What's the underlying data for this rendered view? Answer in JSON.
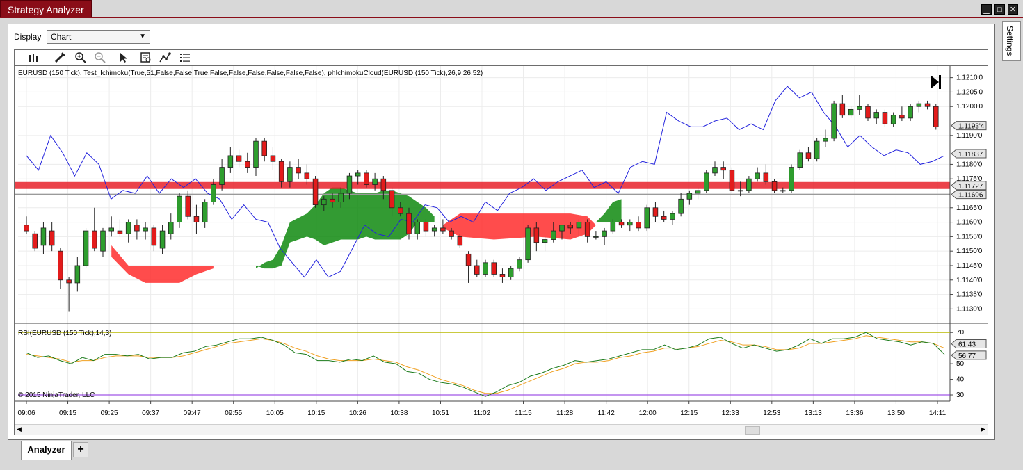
{
  "window": {
    "title": "Strategy Analyzer"
  },
  "display": {
    "label": "Display",
    "value": "Chart"
  },
  "settings_tab": "Settings",
  "tabs": [
    {
      "label": "Analyzer"
    },
    {
      "label": "+"
    }
  ],
  "toolbar": {
    "icons": [
      "bar-type-icon",
      "draw-pencil-icon",
      "zoom-in-icon",
      "zoom-out-icon",
      "pointer-icon",
      "data-box-icon",
      "strategy-icon",
      "list-icon"
    ]
  },
  "colors": {
    "up": "#2e9e2e",
    "down": "#e31b1b",
    "cloud_green": "#0f8a0f",
    "cloud_red": "#ff2d2d",
    "tenkan": "#2222dd",
    "rsi": "#1a7a1a",
    "rsi_avg": "#f0a020"
  },
  "chart_data": {
    "type": "candlestick",
    "title": "EURUSD (150 Tick), Test_Ichimoku(True,51,False,False,True,False,False,False,False,False,False), phIchimokuCloud(EURUSD (150 Tick),26,9,26,52)",
    "ylim": [
      1.1126,
      1.1214
    ],
    "y_ticks": [
      "1.1210'0",
      "1.1205'0",
      "1.1200'0",
      "1.1190'0",
      "1.1180'0",
      "1.1175'0",
      "1.1165'0",
      "1.1160'0",
      "1.1155'0",
      "1.1150'0",
      "1.1145'0",
      "1.1140'0",
      "1.1135'0",
      "1.1130'0"
    ],
    "price_markers": [
      {
        "label": "1.1193'4",
        "value": 1.11934
      },
      {
        "label": "1.11837",
        "value": 1.11837
      },
      {
        "label": "1.11727",
        "value": 1.11727
      },
      {
        "label": "1.11696",
        "value": 1.11696
      }
    ],
    "x_labels": [
      "09:06",
      "09:15",
      "09:25",
      "09:37",
      "09:47",
      "09:55",
      "10:05",
      "10:15",
      "10:26",
      "10:38",
      "10:51",
      "11:02",
      "11:15",
      "11:28",
      "11:42",
      "12:00",
      "12:15",
      "12:33",
      "12:53",
      "13:13",
      "13:36",
      "13:50",
      "14:11"
    ],
    "candles": [
      [
        1.1159,
        1.1162,
        1.1156,
        1.1157
      ],
      [
        1.1156,
        1.1157,
        1.115,
        1.1151
      ],
      [
        1.1152,
        1.116,
        1.1149,
        1.1158
      ],
      [
        1.1157,
        1.116,
        1.115,
        1.1152
      ],
      [
        1.115,
        1.1151,
        1.1137,
        1.114
      ],
      [
        1.114,
        1.1141,
        1.1129,
        1.1139
      ],
      [
        1.1139,
        1.1148,
        1.1136,
        1.1145
      ],
      [
        1.1145,
        1.1158,
        1.1144,
        1.1157
      ],
      [
        1.1157,
        1.1165,
        1.115,
        1.1151
      ],
      [
        1.115,
        1.1158,
        1.1148,
        1.1157
      ],
      [
        1.1157,
        1.1162,
        1.1155,
        1.1158
      ],
      [
        1.1157,
        1.1161,
        1.1155,
        1.1156
      ],
      [
        1.1156,
        1.1161,
        1.1153,
        1.116
      ],
      [
        1.1159,
        1.1161,
        1.1154,
        1.1157
      ],
      [
        1.1157,
        1.116,
        1.1154,
        1.1158
      ],
      [
        1.1158,
        1.1159,
        1.115,
        1.1152
      ],
      [
        1.1151,
        1.1159,
        1.1149,
        1.1157
      ],
      [
        1.1156,
        1.1163,
        1.1154,
        1.116
      ],
      [
        1.116,
        1.117,
        1.1158,
        1.1169
      ],
      [
        1.1169,
        1.1171,
        1.1161,
        1.1162
      ],
      [
        1.1162,
        1.1166,
        1.1156,
        1.116
      ],
      [
        1.116,
        1.1168,
        1.1158,
        1.1167
      ],
      [
        1.1167,
        1.1175,
        1.1166,
        1.1173
      ],
      [
        1.1173,
        1.1182,
        1.1171,
        1.1179
      ],
      [
        1.1179,
        1.1186,
        1.1177,
        1.1183
      ],
      [
        1.1183,
        1.1185,
        1.1179,
        1.1181
      ],
      [
        1.1181,
        1.1184,
        1.1177,
        1.1179
      ],
      [
        1.1179,
        1.1189,
        1.1176,
        1.1188
      ],
      [
        1.1188,
        1.1189,
        1.1181,
        1.1183
      ],
      [
        1.1183,
        1.1186,
        1.1178,
        1.1181
      ],
      [
        1.1181,
        1.1182,
        1.1172,
        1.1174
      ],
      [
        1.1174,
        1.1181,
        1.1172,
        1.1179
      ],
      [
        1.1179,
        1.1182,
        1.1175,
        1.1177
      ],
      [
        1.1177,
        1.118,
        1.1173,
        1.1175
      ],
      [
        1.1175,
        1.1176,
        1.1165,
        1.1166
      ],
      [
        1.1166,
        1.1169,
        1.1164,
        1.1168
      ],
      [
        1.1168,
        1.117,
        1.1165,
        1.1167
      ],
      [
        1.1167,
        1.1172,
        1.1165,
        1.117
      ],
      [
        1.117,
        1.1177,
        1.1168,
        1.1176
      ],
      [
        1.1176,
        1.1178,
        1.1173,
        1.1177
      ],
      [
        1.1177,
        1.1178,
        1.1172,
        1.1173
      ],
      [
        1.1173,
        1.1177,
        1.1171,
        1.1175
      ],
      [
        1.1175,
        1.1176,
        1.1168,
        1.1171
      ],
      [
        1.1171,
        1.1172,
        1.1162,
        1.1165
      ],
      [
        1.1165,
        1.1167,
        1.1162,
        1.1163
      ],
      [
        1.1163,
        1.1165,
        1.1154,
        1.1156
      ],
      [
        1.1156,
        1.1161,
        1.1154,
        1.116
      ],
      [
        1.116,
        1.1161,
        1.1155,
        1.1157
      ],
      [
        1.1157,
        1.1159,
        1.1155,
        1.1158
      ],
      [
        1.1158,
        1.1161,
        1.1156,
        1.1157
      ],
      [
        1.1157,
        1.1158,
        1.1154,
        1.1155
      ],
      [
        1.1155,
        1.1156,
        1.1151,
        1.1152
      ],
      [
        1.1149,
        1.115,
        1.1139,
        1.1145
      ],
      [
        1.1145,
        1.1147,
        1.1141,
        1.1142
      ],
      [
        1.1142,
        1.1147,
        1.1141,
        1.1146
      ],
      [
        1.1146,
        1.1147,
        1.1141,
        1.1142
      ],
      [
        1.1142,
        1.1144,
        1.1139,
        1.1141
      ],
      [
        1.1141,
        1.1145,
        1.114,
        1.1144
      ],
      [
        1.1144,
        1.1148,
        1.1143,
        1.1147
      ],
      [
        1.1147,
        1.1159,
        1.1146,
        1.1158
      ],
      [
        1.1158,
        1.116,
        1.115,
        1.1153
      ],
      [
        1.1153,
        1.1155,
        1.115,
        1.1154
      ],
      [
        1.1154,
        1.116,
        1.1153,
        1.1157
      ],
      [
        1.1157,
        1.1159,
        1.1154,
        1.1159
      ],
      [
        1.1159,
        1.116,
        1.1156,
        1.1158
      ],
      [
        1.1158,
        1.1161,
        1.1155,
        1.116
      ],
      [
        1.116,
        1.1161,
        1.1153,
        1.1155
      ],
      [
        1.1155,
        1.1157,
        1.1154,
        1.1155
      ],
      [
        1.1155,
        1.1158,
        1.1152,
        1.1157
      ],
      [
        1.1157,
        1.1161,
        1.1156,
        1.116
      ],
      [
        1.116,
        1.1161,
        1.1158,
        1.1159
      ],
      [
        1.1159,
        1.1161,
        1.1157,
        1.116
      ],
      [
        1.116,
        1.1162,
        1.1157,
        1.1158
      ],
      [
        1.1158,
        1.1166,
        1.1157,
        1.1165
      ],
      [
        1.1165,
        1.1167,
        1.116,
        1.1162
      ],
      [
        1.1162,
        1.1164,
        1.116,
        1.1161
      ],
      [
        1.1161,
        1.1164,
        1.1159,
        1.1163
      ],
      [
        1.1163,
        1.117,
        1.1162,
        1.1168
      ],
      [
        1.1168,
        1.1171,
        1.1166,
        1.117
      ],
      [
        1.117,
        1.1172,
        1.1168,
        1.1171
      ],
      [
        1.1171,
        1.1178,
        1.117,
        1.1177
      ],
      [
        1.1177,
        1.1181,
        1.1176,
        1.1179
      ],
      [
        1.1179,
        1.1181,
        1.1175,
        1.1178
      ],
      [
        1.1178,
        1.1179,
        1.117,
        1.1171
      ],
      [
        1.1171,
        1.1174,
        1.1169,
        1.1171
      ],
      [
        1.1171,
        1.1176,
        1.117,
        1.1175
      ],
      [
        1.1175,
        1.1179,
        1.1174,
        1.1177
      ],
      [
        1.1177,
        1.118,
        1.1173,
        1.1174
      ],
      [
        1.1174,
        1.1175,
        1.117,
        1.1171
      ],
      [
        1.1171,
        1.1172,
        1.117,
        1.1171
      ],
      [
        1.1171,
        1.118,
        1.117,
        1.1179
      ],
      [
        1.1179,
        1.1185,
        1.1178,
        1.1184
      ],
      [
        1.1184,
        1.1186,
        1.1181,
        1.1182
      ],
      [
        1.1182,
        1.1189,
        1.1181,
        1.1188
      ],
      [
        1.1188,
        1.1192,
        1.1186,
        1.1189
      ],
      [
        1.1189,
        1.1202,
        1.1188,
        1.1201
      ],
      [
        1.1201,
        1.1204,
        1.1196,
        1.1197
      ],
      [
        1.1197,
        1.12,
        1.1196,
        1.1199
      ],
      [
        1.1199,
        1.1204,
        1.1197,
        1.12
      ],
      [
        1.12,
        1.1201,
        1.1195,
        1.1196
      ],
      [
        1.1196,
        1.1199,
        1.1194,
        1.1198
      ],
      [
        1.1198,
        1.1199,
        1.1193,
        1.1194
      ],
      [
        1.1194,
        1.1198,
        1.1193,
        1.1197
      ],
      [
        1.1197,
        1.12,
        1.1195,
        1.1196
      ],
      [
        1.1196,
        1.1201,
        1.1195,
        1.12
      ],
      [
        1.12,
        1.1202,
        1.1198,
        1.1201
      ],
      [
        1.1201,
        1.1202,
        1.1199,
        1.12
      ],
      [
        1.12,
        1.1201,
        1.1192,
        1.1193
      ]
    ],
    "tenkan": [
      1.1183,
      1.1178,
      1.119,
      1.1184,
      1.1176,
      1.1184,
      1.118,
      1.1168,
      1.1171,
      1.117,
      1.1176,
      1.117,
      1.1175,
      1.1172,
      1.1175,
      1.117,
      1.1168,
      1.1161,
      1.1166,
      1.1161,
      1.116,
      1.1151,
      1.1146,
      1.1141,
      1.1147,
      1.1141,
      1.1143,
      1.1151,
      1.1159,
      1.1156,
      1.1155,
      1.1161,
      1.116,
      1.1166,
      1.1165,
      1.116,
      1.1162,
      1.116,
      1.1167,
      1.1164,
      1.117,
      1.1172,
      1.1175,
      1.1171,
      1.1174,
      1.1176,
      1.1178,
      1.1172,
      1.1174,
      1.117,
      1.1179,
      1.1181,
      1.118,
      1.1198,
      1.1195,
      1.1193,
      1.1193,
      1.1195,
      1.1196,
      1.1192,
      1.1194,
      1.1192,
      1.1202,
      1.1207,
      1.1203,
      1.1205,
      1.1198,
      1.1193,
      1.1186,
      1.119,
      1.1186,
      1.1183,
      1.1185,
      1.1184,
      1.118,
      1.1181,
      1.1183
    ],
    "cloud": {
      "green": [
        [
          1.1144,
          1.1145,
          27
        ],
        [
          1.1146,
          1.1144,
          28
        ],
        [
          1.1147,
          1.1144,
          29
        ],
        [
          1.1152,
          1.1145,
          30
        ],
        [
          1.116,
          1.1153,
          31
        ],
        [
          1.1163,
          1.1155,
          33
        ],
        [
          1.1166,
          1.1154,
          34
        ],
        [
          1.117,
          1.1152,
          35
        ],
        [
          1.1172,
          1.1153,
          36
        ],
        [
          1.1172,
          1.1154,
          37
        ],
        [
          1.1171,
          1.1154,
          38
        ],
        [
          1.117,
          1.1154,
          39
        ],
        [
          1.117,
          1.1155,
          40
        ],
        [
          1.117,
          1.1154,
          41
        ],
        [
          1.1171,
          1.1154,
          42
        ],
        [
          1.1171,
          1.1154,
          43
        ],
        [
          1.117,
          1.1154,
          44
        ],
        [
          1.1169,
          1.1156,
          45
        ],
        [
          1.1167,
          1.116,
          46
        ],
        [
          1.1165,
          1.116,
          47
        ],
        [
          1.1162,
          1.116,
          48
        ]
      ],
      "red": [
        [
          1.1152,
          1.1148,
          10
        ],
        [
          1.1145,
          1.1142,
          12
        ],
        [
          1.1145,
          1.1139,
          14
        ],
        [
          1.1145,
          1.1139,
          16
        ],
        [
          1.1145,
          1.1139,
          18
        ],
        [
          1.1145,
          1.1142,
          20
        ],
        [
          1.1145,
          1.1144,
          22
        ],
        [
          1.1159,
          1.1158,
          49
        ],
        [
          1.1163,
          1.1155,
          51
        ],
        [
          1.1163,
          1.1154,
          55
        ],
        [
          1.1163,
          1.1155,
          60
        ],
        [
          1.1163,
          1.1154,
          64
        ],
        [
          1.1162,
          1.1156,
          66
        ],
        [
          1.1159,
          1.1159,
          67
        ]
      ],
      "green_end": [
        [
          1.116,
          1.116,
          67
        ],
        [
          1.1163,
          1.116,
          68
        ],
        [
          1.1167,
          1.116,
          69
        ],
        [
          1.1168,
          1.116,
          70
        ]
      ]
    },
    "horizontal_lines": [
      {
        "label": "1.11727",
        "value": 1.11727,
        "color": "#e8212a"
      },
      {
        "label": "1.11696",
        "value": 1.11696,
        "color": "#9a9a9a"
      }
    ],
    "rsi": {
      "title": "RSI(EURUSD (150 Tick),14,3)",
      "ylim": [
        26,
        75
      ],
      "y_ticks": [
        "70",
        "50",
        "40",
        "30"
      ],
      "markers": [
        {
          "label": "61.43",
          "value": 61.43
        },
        {
          "label": "56.77",
          "value": 56.77
        }
      ],
      "levels": [
        70,
        30
      ],
      "rsi_values": [
        57,
        54,
        55,
        52,
        50,
        54,
        52,
        56,
        56,
        55,
        56,
        53,
        54,
        54,
        57,
        58,
        61,
        62,
        64,
        66,
        66,
        67,
        65,
        62,
        57,
        56,
        52,
        52,
        51,
        53,
        52,
        55,
        51,
        50,
        45,
        44,
        40,
        38,
        37,
        35,
        32,
        29,
        32,
        36,
        38,
        42,
        44,
        47,
        49,
        52,
        51,
        52,
        53,
        55,
        57,
        59,
        59,
        62,
        59,
        60,
        62,
        66,
        67,
        63,
        60,
        62,
        60,
        58,
        59,
        62,
        66,
        63,
        66,
        66,
        67,
        70,
        66,
        65,
        64,
        62,
        64,
        63,
        56
      ],
      "signal_values": [
        56,
        55,
        54,
        53,
        51,
        52,
        52,
        54,
        55,
        55,
        55,
        54,
        54,
        54,
        55,
        57,
        59,
        61,
        63,
        64,
        65,
        66,
        65,
        63,
        60,
        58,
        55,
        53,
        52,
        52,
        52,
        53,
        52,
        51,
        48,
        46,
        43,
        40,
        38,
        36,
        33,
        31,
        31,
        33,
        36,
        39,
        42,
        45,
        47,
        50,
        51,
        51,
        52,
        54,
        55,
        57,
        58,
        60,
        60,
        60,
        61,
        63,
        65,
        64,
        62,
        62,
        61,
        59,
        59,
        60,
        63,
        63,
        64,
        65,
        66,
        68,
        67,
        66,
        65,
        64,
        64,
        63,
        60
      ]
    },
    "copyright": "© 2015 NinjaTrader, LLC"
  }
}
